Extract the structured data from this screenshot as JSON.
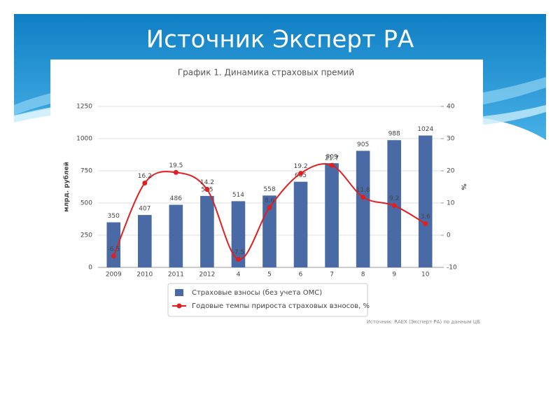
{
  "title": "Источник Эксперт РА",
  "chart_data": {
    "type": "bar",
    "title": "График 1. Динамика страховых премий",
    "source": "Источник: RAEX (Эксперт РА) по данным ЦБ",
    "categories": [
      "2009",
      "2010",
      "2011",
      "2012",
      "4",
      "5",
      "6",
      "7",
      "8",
      "9",
      "10"
    ],
    "ylabel": "млрд. рублей",
    "y2label": "%",
    "ylim": [
      0,
      1250
    ],
    "yticks": [
      0,
      250,
      500,
      750,
      1000,
      1250
    ],
    "y2lim": [
      -10,
      40
    ],
    "y2ticks": [
      -10,
      0,
      10,
      20,
      30,
      40
    ],
    "grid": true,
    "series": [
      {
        "name": "Страховые взносы (без учета ОМС)",
        "color": "#4a6aa5",
        "type": "bar",
        "values": [
          350,
          407,
          486,
          555,
          514,
          558,
          665,
          809,
          905,
          988,
          1024
        ]
      },
      {
        "name": "Годовые темпы прироста страховых взносов, %",
        "color": "#e02020",
        "type": "line",
        "axis": "y2",
        "values": [
          -6.5,
          16.2,
          19.5,
          14.2,
          -7.5,
          8.6,
          19.2,
          21.7,
          11.8,
          9.2,
          3.6
        ]
      }
    ]
  }
}
